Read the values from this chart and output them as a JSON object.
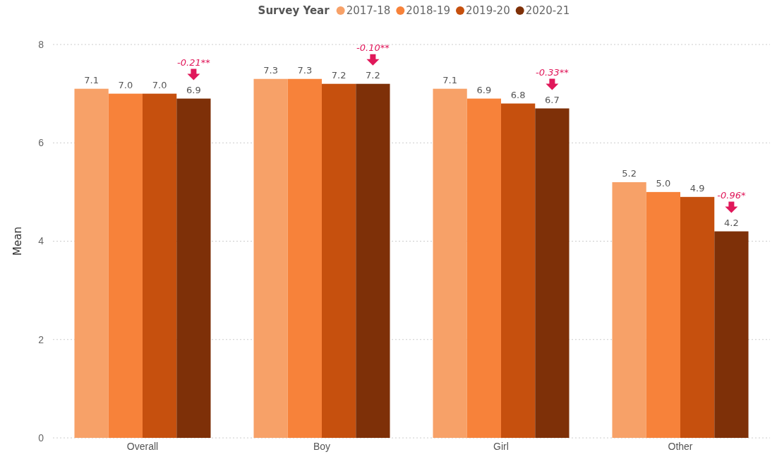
{
  "chart_data": {
    "type": "bar",
    "ylabel": "Mean",
    "legend_title": "Survey Year",
    "legend": "top",
    "grid": "y",
    "categories": [
      "Overall",
      "Boy",
      "Girl",
      "Other"
    ],
    "series": [
      {
        "name": "2017-18",
        "color": "#f7a168",
        "values": [
          7.1,
          7.3,
          7.1,
          5.2
        ],
        "value_labels": [
          "7.1",
          "7.3",
          "7.1",
          "5.2"
        ]
      },
      {
        "name": "2018-19",
        "color": "#f7823a",
        "values": [
          7.0,
          7.3,
          6.9,
          5.0
        ],
        "value_labels": [
          "7.0",
          "7.3",
          "6.9",
          "5.0"
        ]
      },
      {
        "name": "2019-20",
        "color": "#c6500e",
        "values": [
          7.0,
          7.2,
          6.8,
          4.9
        ],
        "value_labels": [
          "7.0",
          "7.2",
          "6.8",
          "4.9"
        ]
      },
      {
        "name": "2020-21",
        "color": "#7e3008",
        "values": [
          6.9,
          7.2,
          6.7,
          4.2
        ],
        "value_labels": [
          "6.9",
          "7.2",
          "6.7",
          "4.2"
        ]
      }
    ],
    "ylim": [
      0,
      8
    ],
    "yticks": [
      0,
      2,
      4,
      6,
      8
    ],
    "annotations": [
      "-0.21**",
      "-0.10**",
      "-0.33**",
      "-0.96*"
    ]
  }
}
